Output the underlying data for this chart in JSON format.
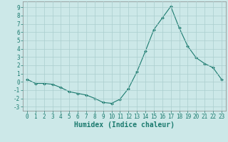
{
  "x": [
    0,
    1,
    2,
    3,
    4,
    5,
    6,
    7,
    8,
    9,
    10,
    11,
    12,
    13,
    14,
    15,
    16,
    17,
    18,
    19,
    20,
    21,
    22,
    23
  ],
  "y": [
    0.3,
    -0.2,
    -0.2,
    -0.3,
    -0.7,
    -1.2,
    -1.4,
    -1.6,
    -2.0,
    -2.5,
    -2.6,
    -2.1,
    -0.8,
    1.2,
    3.7,
    6.3,
    7.7,
    9.1,
    6.5,
    4.3,
    2.9,
    2.2,
    1.7,
    0.3
  ],
  "line_color": "#1a7a6e",
  "marker": "D",
  "marker_size": 2.0,
  "bg_color": "#cce8e8",
  "grid_color": "#aacece",
  "xlabel": "Humidex (Indice chaleur)",
  "xlim": [
    -0.5,
    23.5
  ],
  "ylim": [
    -3.5,
    9.7
  ],
  "yticks": [
    -3,
    -2,
    -1,
    0,
    1,
    2,
    3,
    4,
    5,
    6,
    7,
    8,
    9
  ],
  "xticks": [
    0,
    1,
    2,
    3,
    4,
    5,
    6,
    7,
    8,
    9,
    10,
    11,
    12,
    13,
    14,
    15,
    16,
    17,
    18,
    19,
    20,
    21,
    22,
    23
  ],
  "tick_color": "#1a7a6e",
  "label_fontsize": 6.5,
  "tick_fontsize": 5.5,
  "xlabel_fontsize": 7.0
}
